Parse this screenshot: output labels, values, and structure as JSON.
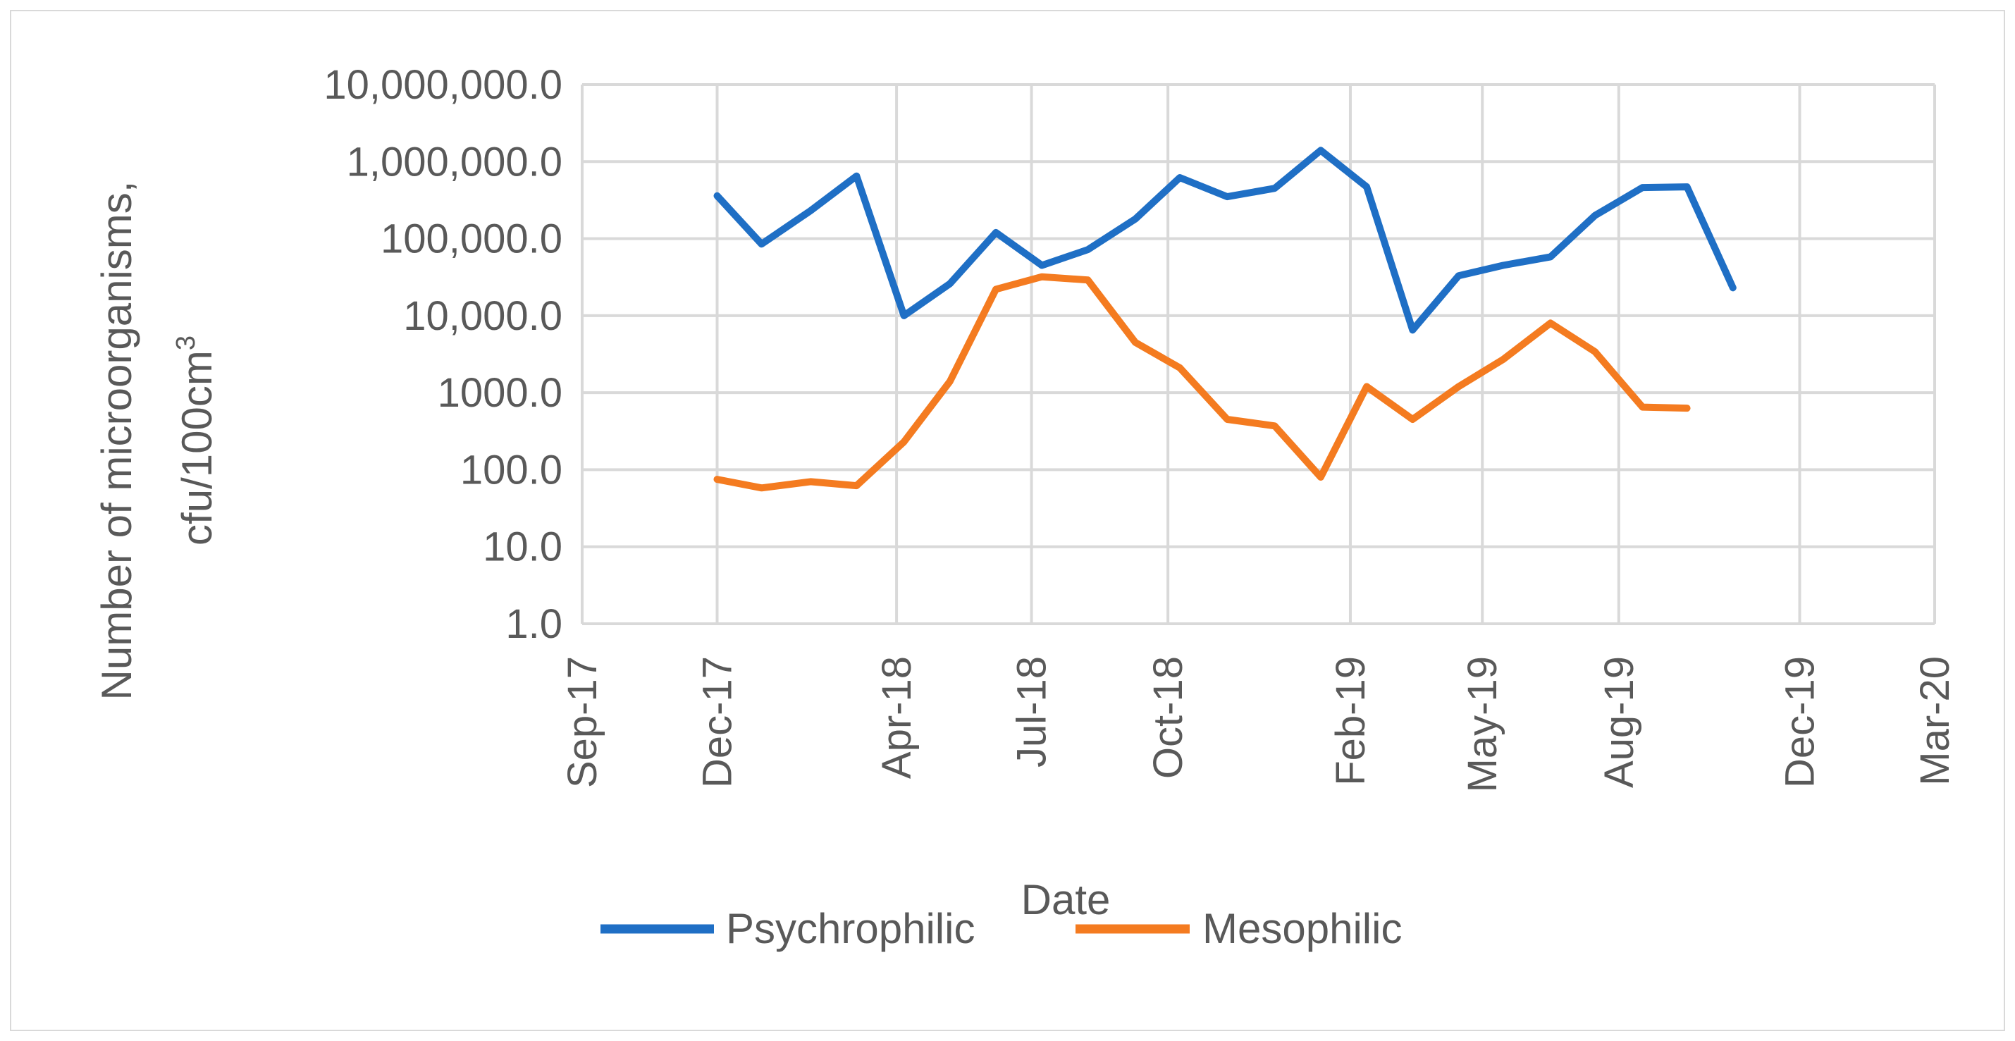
{
  "chart_data": {
    "type": "line",
    "title": "",
    "xlabel": "Date",
    "ylabel_lines": [
      "Number of microorganisms,",
      "cfu/100cm"
    ],
    "ylabel_superscript": "3",
    "yscale": "log10",
    "ylim": [
      1,
      10000000
    ],
    "y_tick_values": [
      1,
      10,
      100,
      1000,
      10000,
      100000,
      1000000,
      10000000
    ],
    "y_tick_labels": [
      "1.0",
      "10.0",
      "100.0",
      "1000.0",
      "10,000.0",
      "100,000.0",
      "1,000,000.0",
      "10,000,000.0"
    ],
    "xlim": [
      "2017-09-01",
      "2020-03-01"
    ],
    "x_ticks": [
      {
        "date": "2017-09-01",
        "label": "Sep-17"
      },
      {
        "date": "2017-12-01",
        "label": "Dec-17"
      },
      {
        "date": "2018-04-01",
        "label": "Apr-18"
      },
      {
        "date": "2018-07-01",
        "label": "Jul-18"
      },
      {
        "date": "2018-10-01",
        "label": "Oct-18"
      },
      {
        "date": "2019-02-01",
        "label": "Feb-19"
      },
      {
        "date": "2019-05-01",
        "label": "May-19"
      },
      {
        "date": "2019-08-01",
        "label": "Aug-19"
      },
      {
        "date": "2019-12-01",
        "label": "Dec-19"
      },
      {
        "date": "2020-03-01",
        "label": "Mar-20"
      }
    ],
    "grid": true,
    "legend_position": "bottom",
    "series": [
      {
        "name": "Psychrophilic",
        "color": "#1f6fc5",
        "x": [
          "2017-12-01",
          "2017-12-31",
          "2018-02-02",
          "2018-03-05",
          "2018-04-06",
          "2018-05-07",
          "2018-06-07",
          "2018-07-08",
          "2018-08-08",
          "2018-09-09",
          "2018-10-09",
          "2018-11-10",
          "2018-12-12",
          "2019-01-12",
          "2019-02-12",
          "2019-03-15",
          "2019-04-15",
          "2019-05-15",
          "2019-06-16",
          "2019-07-16",
          "2019-08-17",
          "2019-09-16",
          "2019-10-17"
        ],
        "values": [
          360000,
          85000,
          230000,
          650000,
          10000,
          26000,
          120000,
          45000,
          72000,
          180000,
          620000,
          350000,
          450000,
          1400000,
          470000,
          6500,
          33000,
          45000,
          58000,
          200000,
          460000,
          470000,
          23000
        ]
      },
      {
        "name": "Mesophilic",
        "color": "#f47b20",
        "x": [
          "2017-12-01",
          "2017-12-31",
          "2018-02-02",
          "2018-03-05",
          "2018-04-06",
          "2018-05-07",
          "2018-06-07",
          "2018-07-08",
          "2018-08-08",
          "2018-09-09",
          "2018-10-09",
          "2018-11-10",
          "2018-12-12",
          "2019-01-12",
          "2019-02-12",
          "2019-03-15",
          "2019-04-15",
          "2019-05-15",
          "2019-06-16",
          "2019-07-16",
          "2019-08-17",
          "2019-09-16"
        ],
        "values": [
          75,
          58,
          70,
          62,
          230,
          1400,
          22000,
          32000,
          29000,
          4500,
          2100,
          450,
          370,
          80,
          1200,
          450,
          1200,
          2700,
          8000,
          3400,
          650,
          630
        ]
      }
    ]
  }
}
